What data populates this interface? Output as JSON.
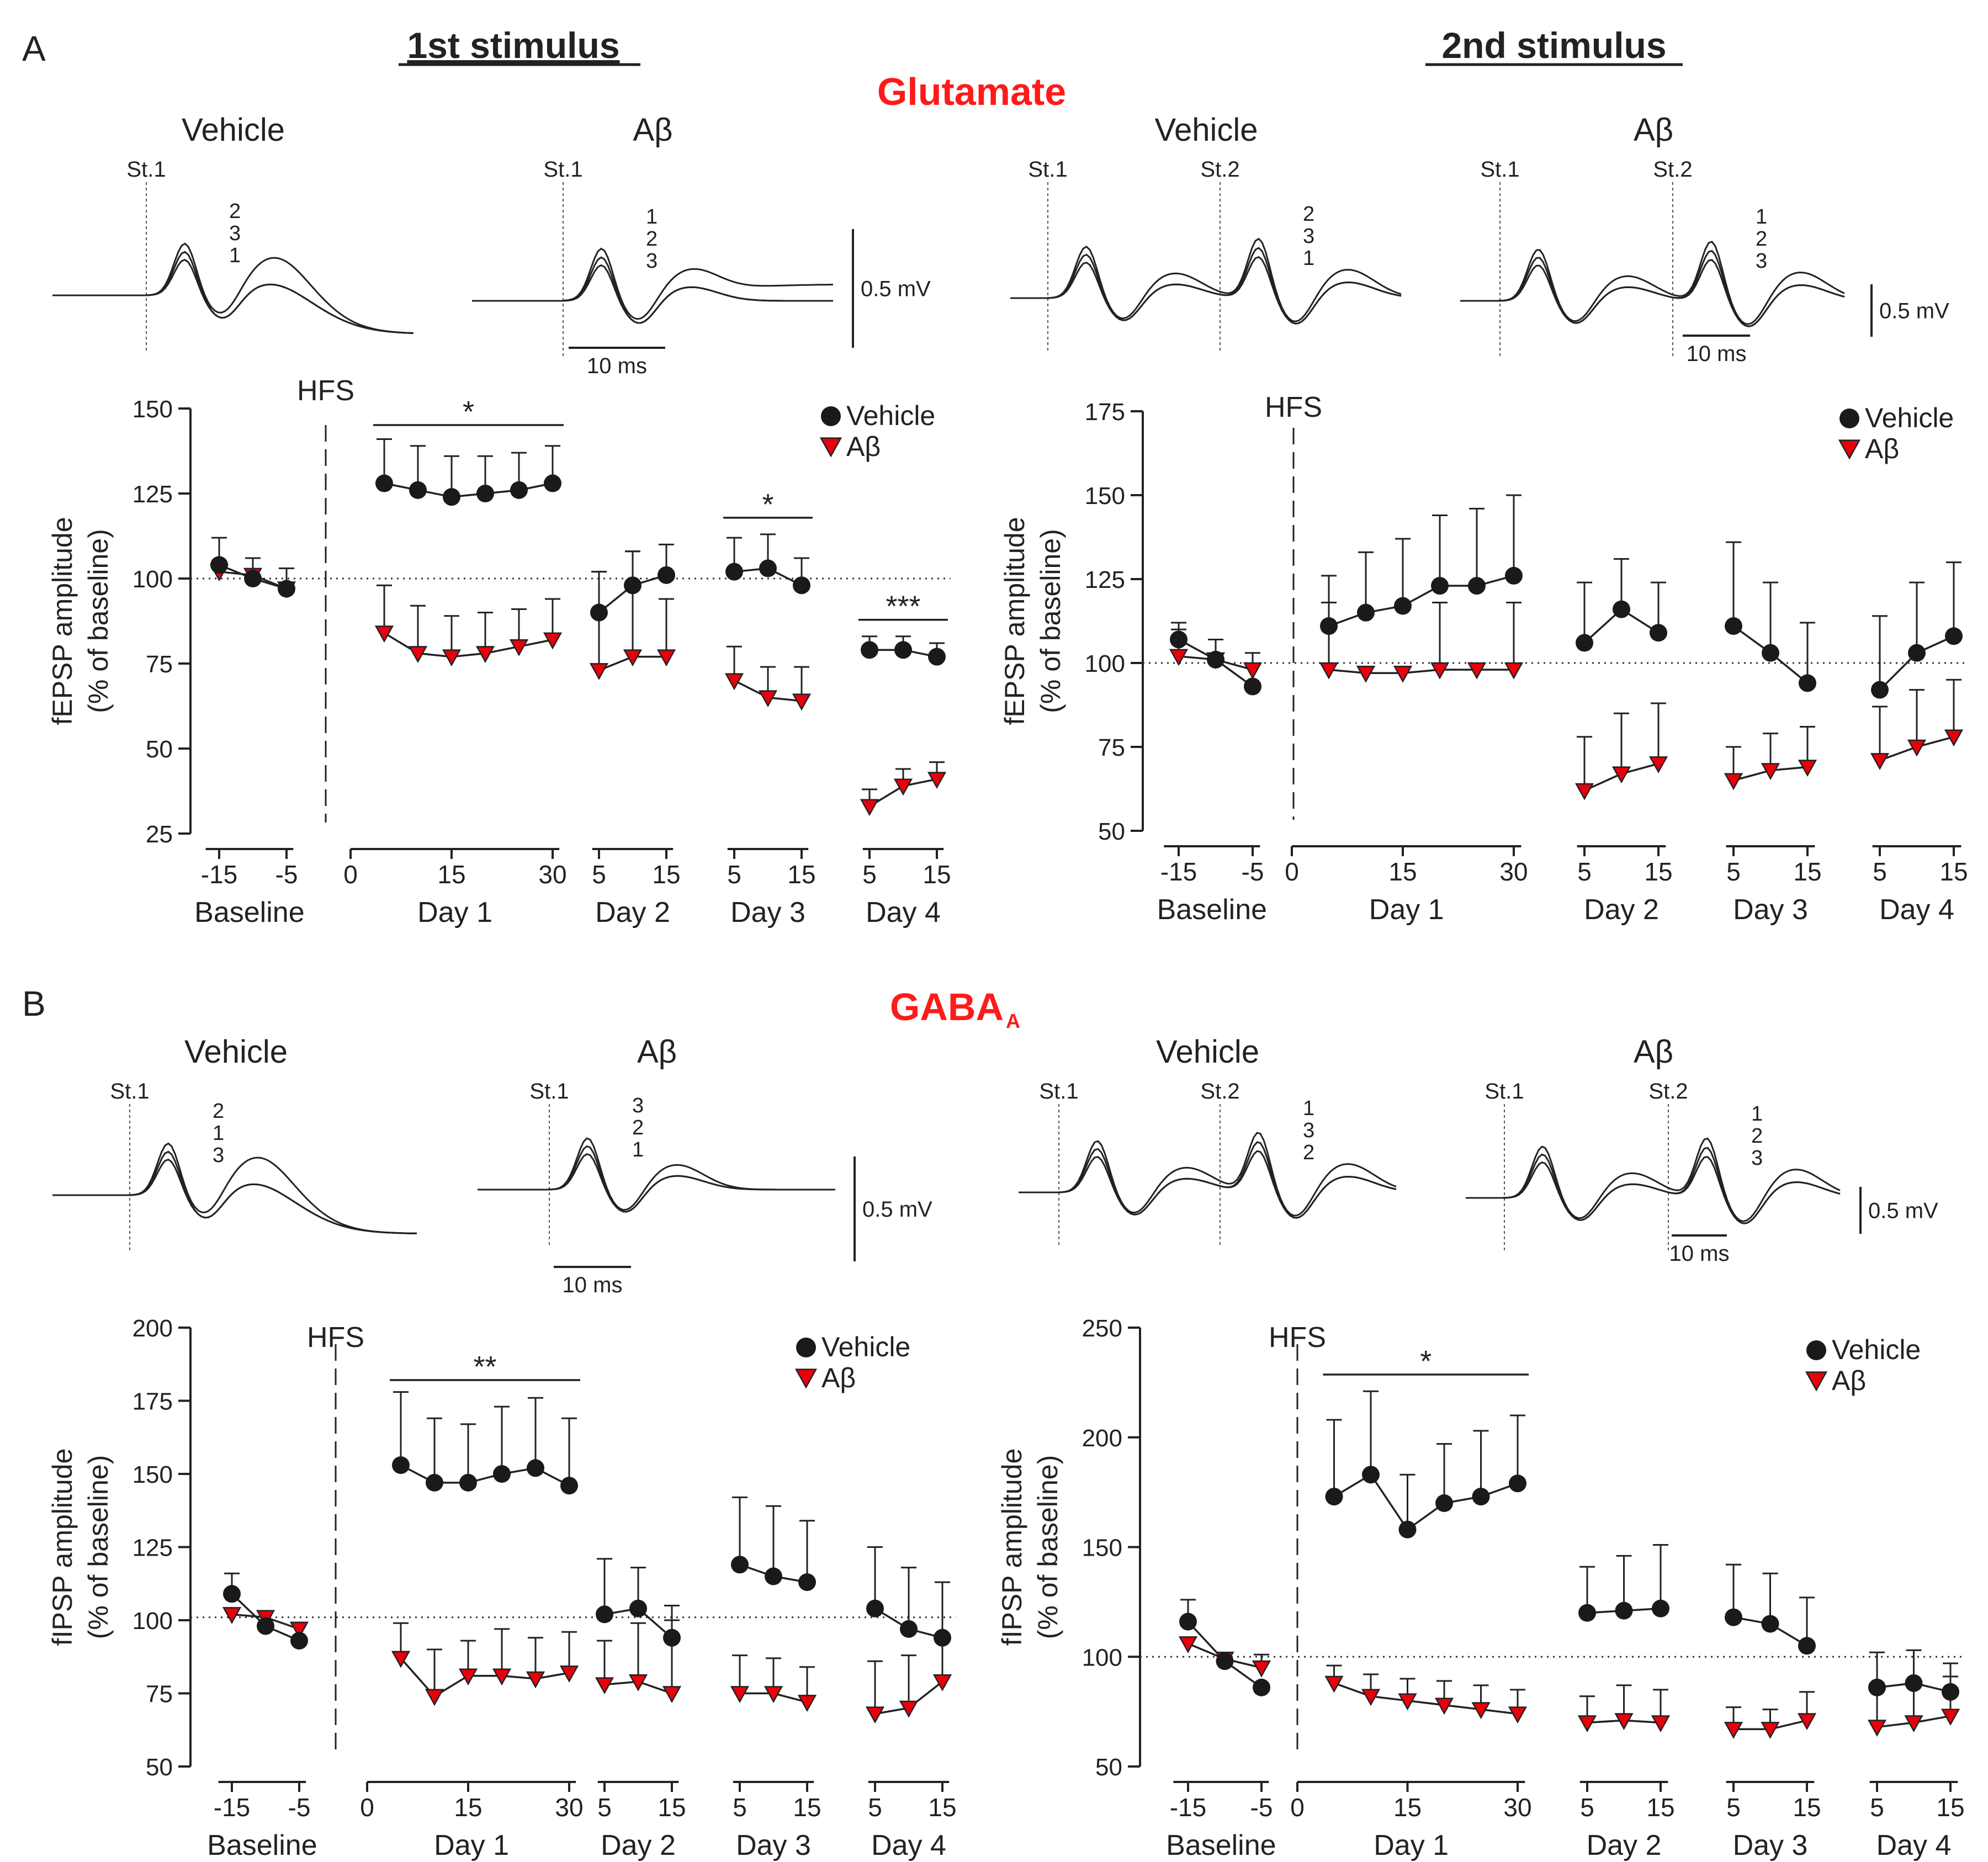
{
  "colors": {
    "vehicle": "#1a1a1a",
    "abeta": "#e8000b",
    "accent_red": "#ff1a1a",
    "ink": "#222222"
  },
  "labels": {
    "panel_a": "A",
    "panel_b": "B",
    "first_stimulus": "1st stimulus",
    "second_stimulus": "2nd stimulus",
    "glutamate": "Glutamate",
    "gaba": "GABA",
    "gaba_sub": "A"
  },
  "traces": [
    {
      "title": "Vehicle",
      "stims": [
        "St.1"
      ],
      "nums": [
        "2",
        "3",
        "1"
      ]
    },
    {
      "title": "Aβ",
      "stims": [
        "St.1"
      ],
      "nums": [
        "1",
        "2",
        "3"
      ],
      "scale_v": "0.5 mV",
      "scale_t": "10 ms"
    },
    {
      "title": "Vehicle",
      "stims": [
        "St.1",
        "St.2"
      ],
      "nums": [
        "2",
        "3",
        "1"
      ]
    },
    {
      "title": "Aβ",
      "stims": [
        "St.1",
        "St.2"
      ],
      "nums": [
        "1",
        "2",
        "3"
      ],
      "scale_v": "0.5 mV",
      "scale_t": "10 ms"
    },
    {
      "title": "Vehicle",
      "stims": [
        "St.1"
      ],
      "nums": [
        "2",
        "1",
        "3"
      ]
    },
    {
      "title": "Aβ",
      "stims": [
        "St.1"
      ],
      "nums": [
        "3",
        "2",
        "1"
      ],
      "scale_v": "0.5 mV",
      "scale_t": "10 ms"
    },
    {
      "title": "Vehicle",
      "stims": [
        "St.1",
        "St.2"
      ],
      "nums": [
        "1",
        "3",
        "2"
      ]
    },
    {
      "title": "Aβ",
      "stims": [
        "St.1",
        "St.2"
      ],
      "nums": [
        "1",
        "2",
        "3"
      ],
      "scale_v": "0.5 mV",
      "scale_t": "10 ms"
    }
  ],
  "chart_data": [
    {
      "type": "line",
      "ylabel": "fEPSP amplitude",
      "ylabel2": "(% of baseline)",
      "ylim": [
        25,
        150
      ],
      "yticks": [
        25,
        50,
        75,
        100,
        125,
        150
      ],
      "reference": 100,
      "hfs_label": "HFS",
      "legend": [
        "Vehicle",
        "Aβ"
      ],
      "groups": [
        {
          "label": "Baseline",
          "ticks": [
            "-15",
            "-5"
          ],
          "x": [
            -15,
            -10,
            -5
          ],
          "vehicle": [
            104,
            100,
            97
          ],
          "vehicle_err": [
            8,
            6,
            6
          ],
          "abeta": [
            102,
            101,
            97
          ],
          "abeta_err": [
            0,
            0,
            0
          ]
        },
        {
          "label": "Day 1",
          "ticks": [
            "0",
            "15",
            "30"
          ],
          "x": [
            5,
            10,
            15,
            20,
            25,
            30
          ],
          "vehicle": [
            128,
            126,
            124,
            125,
            126,
            128
          ],
          "vehicle_err": [
            13,
            13,
            12,
            11,
            11,
            11
          ],
          "abeta": [
            84,
            78,
            77,
            78,
            80,
            82
          ],
          "abeta_err": [
            14,
            14,
            12,
            12,
            11,
            12
          ]
        },
        {
          "label": "Day 2",
          "ticks": [
            "5",
            "15"
          ],
          "x": [
            5,
            10,
            15
          ],
          "vehicle": [
            90,
            98,
            101
          ],
          "vehicle_err": [
            12,
            10,
            9
          ],
          "abeta": [
            73,
            77,
            77
          ],
          "abeta_err": [
            29,
            31,
            17
          ]
        },
        {
          "label": "Day 3",
          "ticks": [
            "5",
            "15"
          ],
          "x": [
            5,
            10,
            15
          ],
          "vehicle": [
            102,
            103,
            98
          ],
          "vehicle_err": [
            10,
            10,
            8
          ],
          "abeta": [
            70,
            65,
            64
          ],
          "abeta_err": [
            10,
            9,
            10
          ]
        },
        {
          "label": "Day 4",
          "ticks": [
            "5",
            "15"
          ],
          "x": [
            5,
            10,
            15
          ],
          "vehicle": [
            79,
            79,
            77
          ],
          "vehicle_err": [
            4,
            4,
            4
          ],
          "abeta": [
            33,
            39,
            41
          ],
          "abeta_err": [
            5,
            5,
            5
          ]
        }
      ],
      "significance": [
        {
          "group": 1,
          "text": "*"
        },
        {
          "group": 3,
          "text": "*"
        },
        {
          "group": 4,
          "text": "***"
        }
      ]
    },
    {
      "type": "line",
      "ylabel": "fEPSP amplitude",
      "ylabel2": "(% of baseline)",
      "ylim": [
        50,
        175
      ],
      "yticks": [
        50,
        75,
        100,
        125,
        150,
        175
      ],
      "reference": 100,
      "hfs_label": "HFS",
      "legend": [
        "Vehicle",
        "Aβ"
      ],
      "groups": [
        {
          "label": "Baseline",
          "ticks": [
            "-15",
            "-5"
          ],
          "x": [
            -15,
            -10,
            -5
          ],
          "vehicle": [
            107,
            101,
            93
          ],
          "vehicle_err": [
            5,
            6,
            10
          ],
          "abeta": [
            102,
            101,
            98
          ],
          "abeta_err": [
            8,
            0,
            0
          ]
        },
        {
          "label": "Day 1",
          "ticks": [
            "0",
            "15",
            "30"
          ],
          "x": [
            5,
            10,
            15,
            20,
            25,
            30
          ],
          "vehicle": [
            111,
            115,
            117,
            123,
            123,
            126
          ],
          "vehicle_err": [
            15,
            18,
            20,
            21,
            23,
            24
          ],
          "abeta": [
            98,
            97,
            97,
            98,
            98,
            98
          ],
          "abeta_err": [
            20,
            0,
            0,
            20,
            0,
            20
          ]
        },
        {
          "label": "Day 2",
          "ticks": [
            "5",
            "15"
          ],
          "x": [
            5,
            10,
            15
          ],
          "vehicle": [
            106,
            116,
            109
          ],
          "vehicle_err": [
            18,
            15,
            15
          ],
          "abeta": [
            62,
            67,
            70
          ],
          "abeta_err": [
            16,
            18,
            18
          ]
        },
        {
          "label": "Day 3",
          "ticks": [
            "5",
            "15"
          ],
          "x": [
            5,
            10,
            15
          ],
          "vehicle": [
            111,
            103,
            94
          ],
          "vehicle_err": [
            25,
            21,
            18
          ],
          "abeta": [
            65,
            68,
            69
          ],
          "abeta_err": [
            10,
            11,
            12
          ]
        },
        {
          "label": "Day 4",
          "ticks": [
            "5",
            "15"
          ],
          "x": [
            5,
            10,
            15
          ],
          "vehicle": [
            92,
            103,
            108
          ],
          "vehicle_err": [
            22,
            21,
            22
          ],
          "abeta": [
            71,
            75,
            78
          ],
          "abeta_err": [
            16,
            17,
            17
          ]
        }
      ],
      "significance": []
    },
    {
      "type": "line",
      "ylabel": "fIPSP amplitude",
      "ylabel2": "(% of baseline)",
      "ylim": [
        50,
        200
      ],
      "yticks": [
        50,
        75,
        100,
        125,
        150,
        175,
        200
      ],
      "reference": 101,
      "hfs_label": "HFS",
      "legend": [
        "Vehicle",
        "Aβ"
      ],
      "groups": [
        {
          "label": "Baseline",
          "ticks": [
            "-15",
            "-5"
          ],
          "x": [
            -15,
            -10,
            -5
          ],
          "vehicle": [
            109,
            98,
            93
          ],
          "vehicle_err": [
            7,
            0,
            0
          ],
          "abeta": [
            102,
            101,
            97
          ],
          "abeta_err": [
            0,
            0,
            0
          ]
        },
        {
          "label": "Day 1",
          "ticks": [
            "0",
            "15",
            "30"
          ],
          "x": [
            5,
            10,
            15,
            20,
            25,
            30
          ],
          "vehicle": [
            153,
            147,
            147,
            150,
            152,
            146
          ],
          "vehicle_err": [
            25,
            22,
            20,
            23,
            24,
            23
          ],
          "abeta": [
            87,
            74,
            81,
            81,
            80,
            82
          ],
          "abeta_err": [
            12,
            16,
            12,
            16,
            14,
            14
          ]
        },
        {
          "label": "Day 2",
          "ticks": [
            "5",
            "15"
          ],
          "x": [
            5,
            10,
            15
          ],
          "vehicle": [
            102,
            104,
            94
          ],
          "vehicle_err": [
            19,
            14,
            11
          ],
          "abeta": [
            78,
            79,
            75
          ],
          "abeta_err": [
            15,
            20,
            25
          ]
        },
        {
          "label": "Day 3",
          "ticks": [
            "5",
            "15"
          ],
          "x": [
            5,
            10,
            15
          ],
          "vehicle": [
            119,
            115,
            113
          ],
          "vehicle_err": [
            23,
            24,
            21
          ],
          "abeta": [
            75,
            75,
            72
          ],
          "abeta_err": [
            13,
            12,
            12
          ]
        },
        {
          "label": "Day 4",
          "ticks": [
            "5",
            "15"
          ],
          "x": [
            5,
            10,
            15
          ],
          "vehicle": [
            104,
            97,
            94
          ],
          "vehicle_err": [
            21,
            21,
            19
          ],
          "abeta": [
            68,
            70,
            79
          ],
          "abeta_err": [
            18,
            18,
            16
          ]
        }
      ],
      "significance": [
        {
          "group": 1,
          "text": "**"
        }
      ]
    },
    {
      "type": "line",
      "ylabel": "fIPSP amplitude",
      "ylabel2": "(% of baseline)",
      "ylim": [
        50,
        250
      ],
      "yticks": [
        50,
        100,
        150,
        200,
        250
      ],
      "reference": 100,
      "hfs_label": "HFS",
      "legend": [
        "Vehicle",
        "Aβ"
      ],
      "groups": [
        {
          "label": "Baseline",
          "ticks": [
            "-15",
            "-5"
          ],
          "x": [
            -15,
            -10,
            -5
          ],
          "vehicle": [
            116,
            98,
            86
          ],
          "vehicle_err": [
            10,
            0,
            0
          ],
          "abeta": [
            106,
            99,
            95
          ],
          "abeta_err": [
            0,
            0,
            6
          ]
        },
        {
          "label": "Day 1",
          "ticks": [
            "0",
            "15",
            "30"
          ],
          "x": [
            5,
            10,
            15,
            20,
            25,
            30
          ],
          "vehicle": [
            173,
            183,
            158,
            170,
            173,
            179
          ],
          "vehicle_err": [
            35,
            38,
            25,
            27,
            30,
            31
          ],
          "abeta": [
            88,
            82,
            80,
            78,
            76,
            74
          ],
          "abeta_err": [
            8,
            10,
            10,
            11,
            11,
            11
          ]
        },
        {
          "label": "Day 2",
          "ticks": [
            "5",
            "15"
          ],
          "x": [
            5,
            10,
            15
          ],
          "vehicle": [
            120,
            121,
            122
          ],
          "vehicle_err": [
            21,
            25,
            29
          ],
          "abeta": [
            70,
            71,
            70
          ],
          "abeta_err": [
            12,
            16,
            15
          ]
        },
        {
          "label": "Day 3",
          "ticks": [
            "5",
            "15"
          ],
          "x": [
            5,
            10,
            15
          ],
          "vehicle": [
            118,
            115,
            105
          ],
          "vehicle_err": [
            24,
            23,
            22
          ],
          "abeta": [
            67,
            67,
            71
          ],
          "abeta_err": [
            10,
            9,
            13
          ]
        },
        {
          "label": "Day 4",
          "ticks": [
            "5",
            "15"
          ],
          "x": [
            5,
            10,
            15
          ],
          "vehicle": [
            86,
            88,
            84
          ],
          "vehicle_err": [
            16,
            15,
            13
          ],
          "abeta": [
            68,
            70,
            73
          ],
          "abeta_err": [
            17,
            18,
            18
          ]
        }
      ],
      "significance": [
        {
          "group": 1,
          "text": "*"
        }
      ]
    }
  ]
}
